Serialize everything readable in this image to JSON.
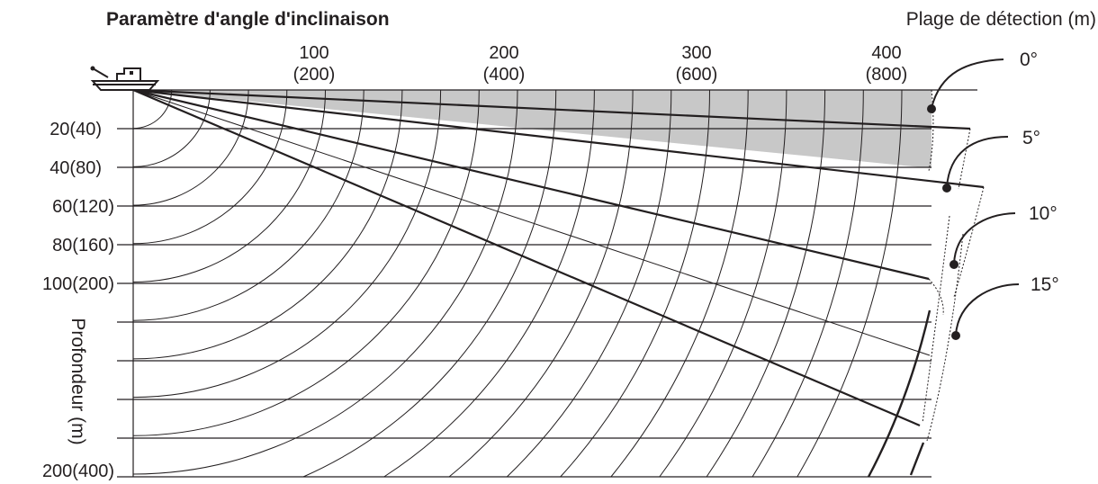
{
  "title": "Paramètre d'angle d'inclinaison",
  "range_label": "Plage de détection (m)",
  "depth_label": "Profondeur (m)",
  "range_ticks": [
    {
      "top": "100",
      "bottom": "(200)"
    },
    {
      "top": "200",
      "bottom": "(400)"
    },
    {
      "top": "300",
      "bottom": "(600)"
    },
    {
      "top": "400",
      "bottom": "(800)"
    }
  ],
  "depth_ticks": [
    "20(40)",
    "40(80)",
    "60(120)",
    "80(160)",
    "100(200)",
    "200(400)"
  ],
  "tilt_angles": [
    "0°",
    "5°",
    "10°",
    "15°"
  ],
  "colors": {
    "ink": "#231f20",
    "shade": "#c8c8c8"
  }
}
